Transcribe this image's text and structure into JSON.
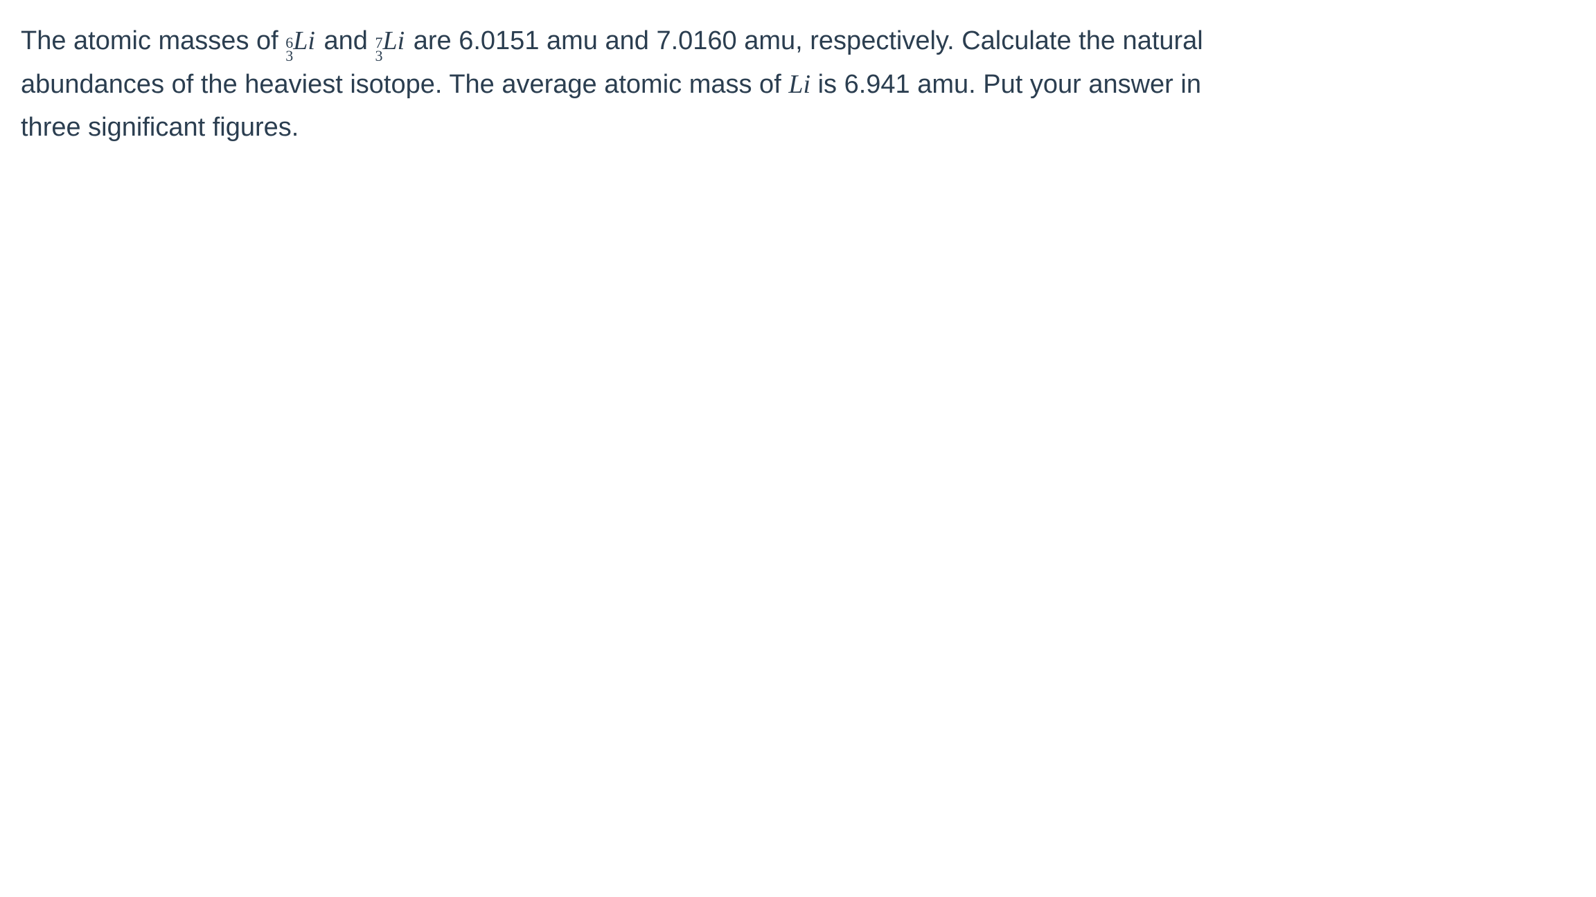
{
  "question": {
    "part1": "The atomic masses of ",
    "isotope1": {
      "massNumber": "6",
      "atomicNumber": "3",
      "element": "Li"
    },
    "part2": " and ",
    "isotope2": {
      "massNumber": "7",
      "atomicNumber": "3",
      "element": "Li"
    },
    "part3": " are 6.0151 amu and 7.0160 amu, respectively. Calculate the natural abundances of the heaviest isotope. The average atomic mass of ",
    "elementSymbol": "Li",
    "part4": " is 6.941 amu. Put your answer in three significant figures."
  },
  "styling": {
    "textColor": "#2b3e50",
    "backgroundColor": "#ffffff",
    "fontSize": 38,
    "isotopeNumFontSize": 22,
    "fontFamily": "Segoe UI",
    "mathFontFamily": "Times New Roman"
  }
}
